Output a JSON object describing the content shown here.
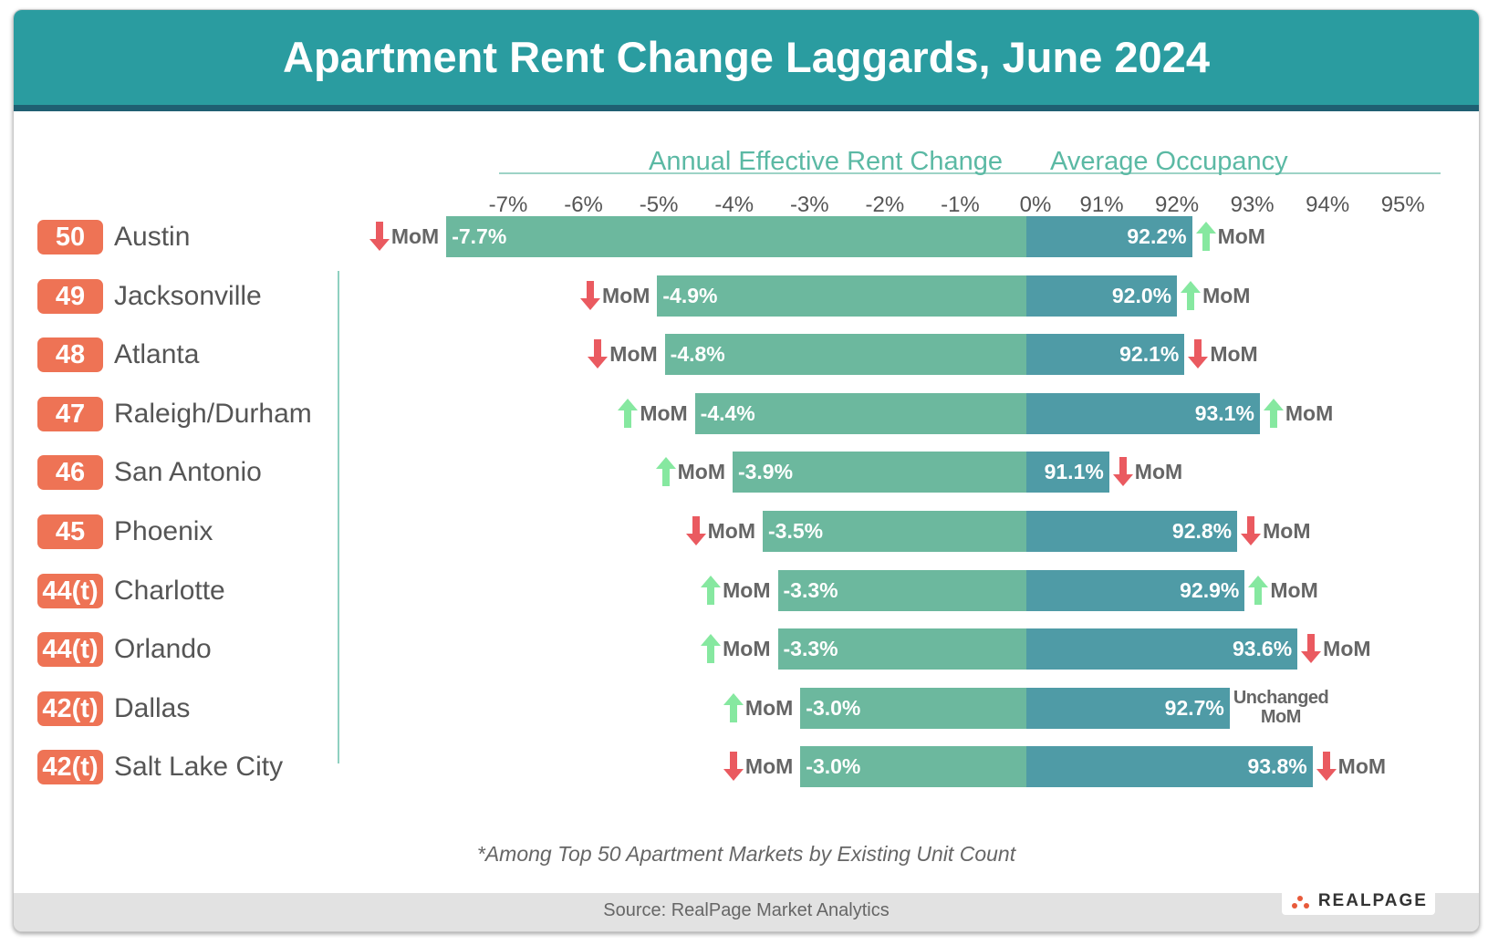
{
  "title": "Apartment Rent Change Laggards, June 2024",
  "footnote": "*Among Top 50 Apartment Markets by Existing Unit Count",
  "source": "Source: RealPage Market Analytics",
  "logo": "REALPAGE",
  "chart_data": {
    "type": "diverging-bar",
    "categories": [
      "Austin",
      "Jacksonville",
      "Atlanta",
      "Raleigh/Durham",
      "San Antonio",
      "Phoenix",
      "Charlotte",
      "Orlando",
      "Dallas",
      "Salt Lake City"
    ],
    "ranks": [
      "50",
      "49",
      "48",
      "47",
      "46",
      "45",
      "44(t)",
      "44(t)",
      "42(t)",
      "42(t)"
    ],
    "rank_color": "#ee7355",
    "mom_colors": {
      "up": "#86e8a0",
      "down": "#ea5a60"
    },
    "series": [
      {
        "name": "Annual Effective Rent Change",
        "color": "#6cb89e",
        "values": [
          -7.7,
          -4.9,
          -4.8,
          -4.4,
          -3.9,
          -3.5,
          -3.3,
          -3.3,
          -3.0,
          -3.0
        ],
        "value_labels": [
          "-7.7%",
          "-4.9%",
          "-4.8%",
          "-4.4%",
          "-3.9%",
          "-3.5%",
          "-3.3%",
          "-3.3%",
          "-3.0%",
          "-3.0%"
        ],
        "xlim": [
          -7,
          0
        ],
        "xticks": [
          {
            "value": -7,
            "label": "-7%"
          },
          {
            "value": -6,
            "label": "-6%"
          },
          {
            "value": -5,
            "label": "-5%"
          },
          {
            "value": -4,
            "label": "-4%"
          },
          {
            "value": -3,
            "label": "-3%"
          },
          {
            "value": -2,
            "label": "-2%"
          },
          {
            "value": -1,
            "label": "-1%"
          },
          {
            "value": 0,
            "label": "0%"
          }
        ],
        "mom": [
          "down",
          "down",
          "down",
          "up",
          "up",
          "down",
          "up",
          "up",
          "up",
          "down"
        ],
        "mom_labels": [
          "MoM",
          "MoM",
          "MoM",
          "MoM",
          "MoM",
          "MoM",
          "MoM",
          "MoM",
          "MoM",
          "MoM"
        ]
      },
      {
        "name": "Average Occupancy",
        "color": "#4f9ba6",
        "values": [
          92.2,
          92.0,
          92.1,
          93.1,
          91.1,
          92.8,
          92.9,
          93.6,
          92.7,
          93.8
        ],
        "value_labels": [
          "92.2%",
          "92.0%",
          "92.1%",
          "93.1%",
          "91.1%",
          "92.8%",
          "92.9%",
          "93.6%",
          "92.7%",
          "93.8%"
        ],
        "xlim": [
          90,
          95.5
        ],
        "xticks": [
          {
            "value": 91,
            "label": "91%"
          },
          {
            "value": 92,
            "label": "92%"
          },
          {
            "value": 93,
            "label": "93%"
          },
          {
            "value": 94,
            "label": "94%"
          },
          {
            "value": 95,
            "label": "95%"
          }
        ],
        "mom": [
          "up",
          "up",
          "down",
          "up",
          "down",
          "down",
          "up",
          "down",
          "unchanged",
          "down"
        ],
        "mom_labels": [
          "MoM",
          "MoM",
          "MoM",
          "MoM",
          "MoM",
          "MoM",
          "MoM",
          "MoM",
          "Unchanged MoM",
          "MoM"
        ]
      }
    ]
  }
}
